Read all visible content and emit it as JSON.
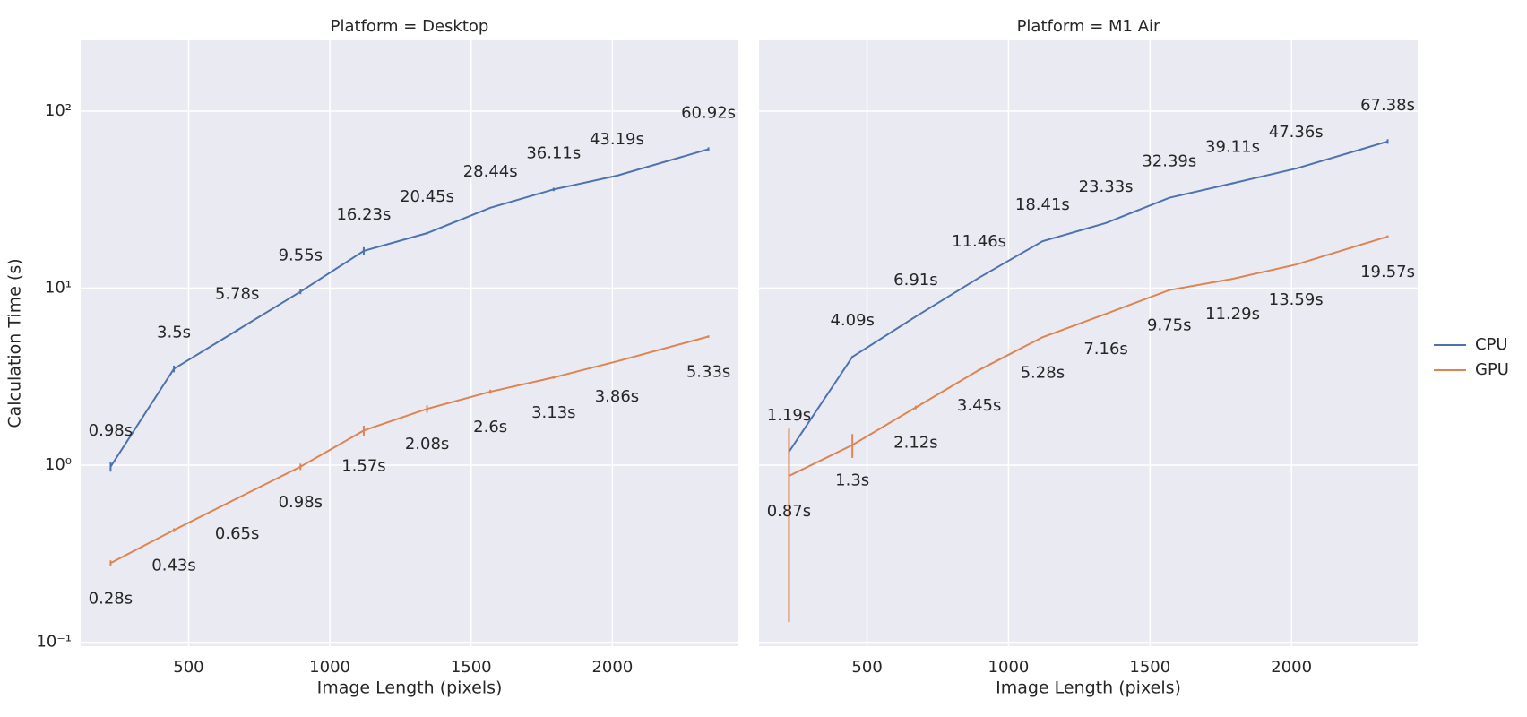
{
  "chart_data": [
    {
      "type": "line",
      "title": "Platform = Desktop",
      "xlabel": "Image Length (pixels)",
      "ylabel": "Calculation Time (s)",
      "x": [
        224,
        448,
        672,
        896,
        1120,
        1344,
        1568,
        1792,
        2016,
        2340
      ],
      "xlim": [
        118,
        2446
      ],
      "xticks": [
        500,
        1000,
        1500,
        2000
      ],
      "yscale": "log",
      "ylim": [
        0.095,
        251
      ],
      "yticks": [
        {
          "value": 0.1,
          "label": "10⁻¹"
        },
        {
          "value": 1,
          "label": "10⁰"
        },
        {
          "value": 10,
          "label": "10¹"
        },
        {
          "value": 100,
          "label": "10²"
        }
      ],
      "grid": true,
      "legend": "right",
      "series": [
        {
          "name": "CPU",
          "color": "#4c72b0",
          "values": [
            0.98,
            3.5,
            5.78,
            9.55,
            16.23,
            20.45,
            28.44,
            36.11,
            43.19,
            60.92
          ],
          "value_labels": [
            "0.98s",
            "3.5s",
            "5.78s",
            "9.55s",
            "16.23s",
            "20.45s",
            "28.44s",
            "36.11s",
            "43.19s",
            "60.92s"
          ],
          "errors": [
            0.06,
            0.15,
            0.1,
            0.3,
            0.8,
            0.3,
            0.2,
            0.8,
            0.5,
            1.5
          ]
        },
        {
          "name": "GPU",
          "color": "#dd8452",
          "values": [
            0.28,
            0.43,
            0.65,
            0.98,
            1.57,
            2.08,
            2.6,
            3.13,
            3.86,
            5.33
          ],
          "value_labels": [
            "0.28s",
            "0.43s",
            "0.65s",
            "0.98s",
            "1.57s",
            "2.08s",
            "2.6s",
            "3.13s",
            "3.86s",
            "5.33s"
          ],
          "errors": [
            0.01,
            0.01,
            0.01,
            0.04,
            0.1,
            0.1,
            0.07,
            0.05,
            0.03,
            0.08
          ]
        }
      ]
    },
    {
      "type": "line",
      "title": "Platform = M1 Air",
      "xlabel": "Image Length (pixels)",
      "x": [
        224,
        448,
        672,
        896,
        1120,
        1344,
        1568,
        1792,
        2016,
        2340
      ],
      "xlim": [
        118,
        2446
      ],
      "xticks": [
        500,
        1000,
        1500,
        2000
      ],
      "series": [
        {
          "name": "CPU",
          "color": "#4c72b0",
          "values": [
            1.19,
            4.09,
            6.91,
            11.46,
            18.41,
            23.33,
            32.39,
            39.11,
            47.36,
            67.38
          ],
          "value_labels": [
            "1.19s",
            "4.09s",
            "6.91s",
            "11.46s",
            "18.41s",
            "23.33s",
            "32.39s",
            "39.11s",
            "47.36s",
            "67.38s"
          ],
          "errors": [
            0.03,
            0.05,
            0.05,
            0.05,
            0.1,
            0.1,
            0.1,
            0.5,
            0.5,
            2
          ]
        },
        {
          "name": "GPU",
          "color": "#dd8452",
          "values": [
            0.87,
            1.3,
            2.12,
            3.45,
            5.28,
            7.16,
            9.75,
            11.29,
            13.59,
            19.57
          ],
          "value_labels": [
            "0.87s",
            "1.3s",
            "2.12s",
            "3.45s",
            "5.28s",
            "7.16s",
            "9.75s",
            "11.29s",
            "13.59s",
            "19.57s"
          ],
          "errors": [
            0.74,
            0.2,
            0.05,
            0.05,
            0.05,
            0.05,
            0.1,
            0.1,
            0.1,
            0.3
          ]
        }
      ]
    }
  ]
}
